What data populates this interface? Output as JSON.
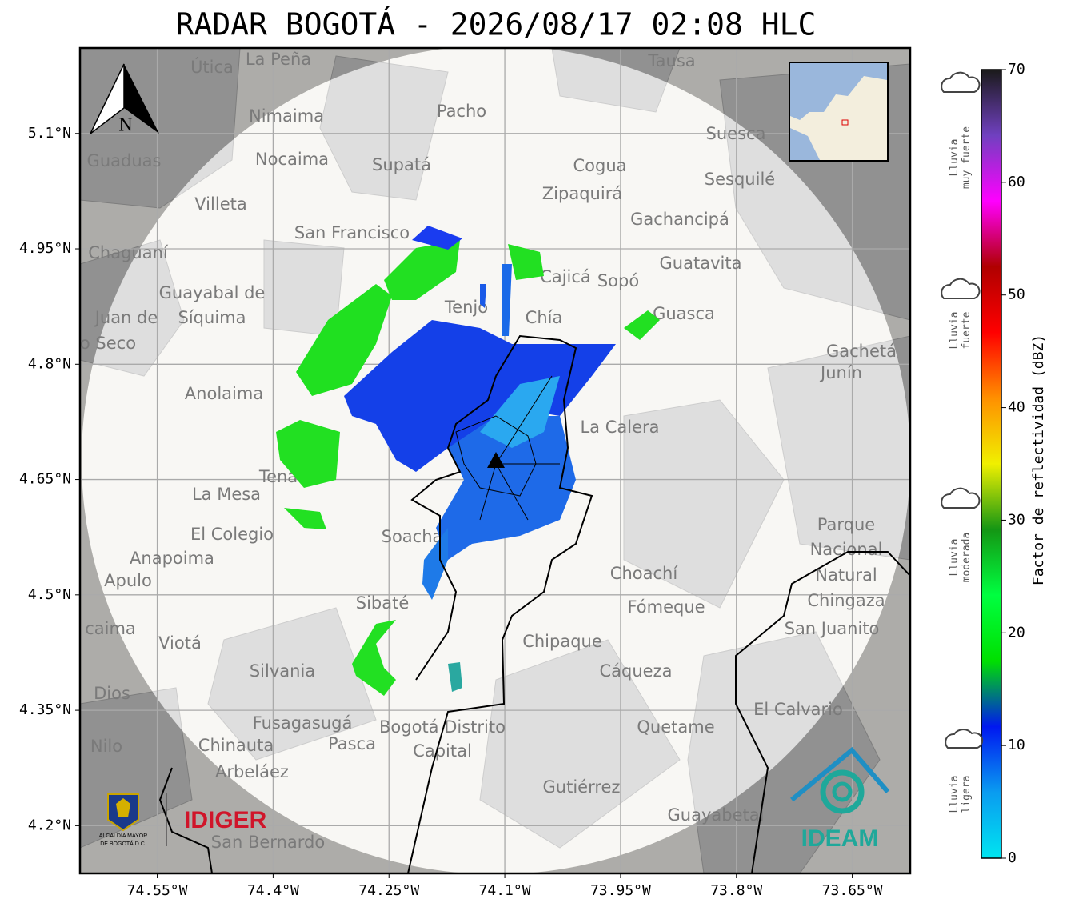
{
  "title": "RADAR BOGOTÁ - 2026/08/17 02:08 HLC",
  "map": {
    "xlim": [
      -74.65,
      -73.575
    ],
    "ylim": [
      4.138,
      5.211
    ],
    "xticks": [
      {
        "value": -74.55,
        "label": "74.55°W"
      },
      {
        "value": -74.4,
        "label": "74.4°W"
      },
      {
        "value": -74.25,
        "label": "74.25°W"
      },
      {
        "value": -74.1,
        "label": "74.1°W"
      },
      {
        "value": -73.95,
        "label": "73.95°W"
      },
      {
        "value": -73.8,
        "label": "73.8°W"
      },
      {
        "value": -73.65,
        "label": "73.65°W"
      }
    ],
    "yticks": [
      {
        "value": 4.2,
        "label": "4.2°N"
      },
      {
        "value": 4.35,
        "label": "4.35°N"
      },
      {
        "value": 4.5,
        "label": "4.5°N"
      },
      {
        "value": 4.65,
        "label": "4.65°N"
      },
      {
        "value": 4.8,
        "label": "4.8°N"
      },
      {
        "value": 4.95,
        "label": "4.95°N"
      },
      {
        "value": 5.1,
        "label": "5.1°N"
      }
    ],
    "grid": true,
    "north": "N",
    "places": [
      "La Peña",
      "Útica",
      "Tausa",
      "Pacho",
      "Nimaima",
      "Nocaima",
      "Supatá",
      "Guaduas",
      "Suesca",
      "Cogua",
      "Sesquilé",
      "Zipaquirá",
      "Villeta",
      "Gachancipá",
      "San Francisco",
      "Chaguaní",
      "Guatavita",
      "Cajicá",
      "Sopó",
      "Guayabal de",
      "Síquima",
      "Tenjo",
      "Chía",
      "Guasca",
      "Juan de",
      "o Seco",
      "Gachetá",
      "Junín",
      "Anolaima",
      "La Calera",
      "Tena",
      "La Mesa",
      "Parque",
      "Nacional",
      "Natural",
      "Chingaza",
      "El Colegio",
      "Soacha",
      "Anapoima",
      "Apulo",
      "Choachí",
      "Fómeque",
      "Sibaté",
      "San Juanito",
      "caima",
      "Viotá",
      "Chipaque",
      "Silvania",
      "Cáqueza",
      "Dios",
      "El Calvario",
      "Fusagasugá",
      "Bogotá Distrito",
      "Capital",
      "Quetame",
      "Nilo",
      "Chinauta",
      "Pasca",
      "Arbeláez",
      "Gutiérrez",
      "Guayabetal",
      "San Bernardo"
    ]
  },
  "logos": {
    "idiger": "IDIGER",
    "ideam": "IDEAM",
    "alcaldia": [
      "ALCALDÍA MAYOR",
      "DE BOGOTÁ D.C."
    ]
  },
  "colorbar": {
    "label": "Factor de reflectividad (dBZ)",
    "lim": [
      0,
      70
    ],
    "ticks": [
      0,
      10,
      20,
      30,
      40,
      50,
      60,
      70
    ],
    "colors": [
      "#00e5f0",
      "#0a9cf0",
      "#0018f0",
      "#00e000",
      "#00ff40",
      "#149614",
      "#f0f000",
      "#ff9000",
      "#ff0000",
      "#b00000",
      "#ff00ff",
      "#7040c0",
      "#1a1a1a"
    ]
  },
  "rain_labels": [
    [
      "Lluvia",
      "muy fuerte"
    ],
    [
      "Lluvia",
      "fuerte"
    ],
    [
      "Lluvia",
      "moderada"
    ],
    [
      "Lluvia",
      "ligera"
    ]
  ]
}
